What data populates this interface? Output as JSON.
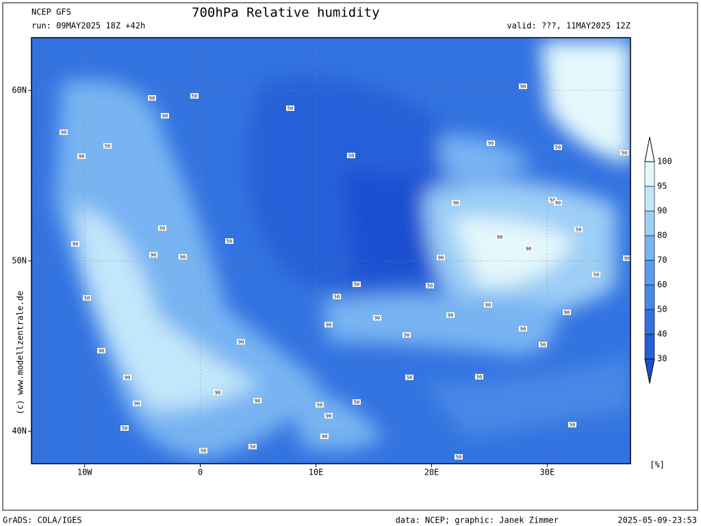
{
  "header": {
    "model": "NCEP GFS",
    "title": "700hPa Relative humidity",
    "run": "run: 09MAY2025 18Z +42h",
    "valid": "valid: ???, 11MAY2025 12Z"
  },
  "map": {
    "xlim": [
      -14.6,
      37.2
    ],
    "ylim": [
      38.1,
      63.1
    ],
    "lon_ticks": [
      {
        "value": -10,
        "label": "10W"
      },
      0,
      {
        "value": 10,
        "label": "10E"
      },
      {
        "value": 20,
        "label": "20E"
      },
      {
        "value": 30,
        "label": "30E"
      }
    ],
    "lat_ticks": [
      {
        "value": 60,
        "label": "60N"
      },
      {
        "value": 50,
        "label": "50N"
      },
      {
        "value": 40,
        "label": "40N"
      }
    ],
    "contour_labels": [
      "90",
      "50",
      "90",
      "90",
      "50",
      "90",
      "50",
      "50",
      "90",
      "90",
      "50",
      "50",
      "90",
      "50",
      "90",
      "50",
      "90",
      "50",
      "90",
      "90",
      "90",
      "90",
      "50",
      "90",
      "90",
      "50",
      "50",
      "50",
      "50",
      "50",
      "90",
      "90",
      "90",
      "90",
      "90",
      "90",
      "50",
      "50",
      "90",
      "90",
      "90",
      "50",
      "50",
      "90",
      "90",
      "90",
      "50",
      "50",
      "90",
      "50",
      "50",
      "90",
      "50",
      "50",
      "50"
    ],
    "credit": "(c) www.modellzentrale.de"
  },
  "colorbar": {
    "levels": [
      30,
      40,
      50,
      60,
      70,
      80,
      90,
      95,
      100
    ],
    "colors": [
      "#1a4fd0",
      "#2560d8",
      "#3373e0",
      "#4688e6",
      "#5c9cec",
      "#78b4f2",
      "#9ccef6",
      "#c2e6fa",
      "#e4f8fc",
      "#ffffff"
    ],
    "unit": "[%]"
  },
  "footer": {
    "software": "GrADS: COLA/IGES",
    "source": "data: NCEP; graphic: Janek Zimmer",
    "timestamp": "2025-05-09-23:53"
  }
}
